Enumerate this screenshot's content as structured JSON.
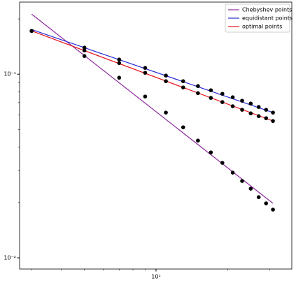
{
  "chart_data": {
    "type": "line",
    "log_x": true,
    "log_y": true,
    "x": [
      3,
      5,
      7,
      9,
      11,
      13,
      15,
      17,
      19,
      21,
      23,
      25,
      27,
      29,
      31
    ],
    "series": [
      {
        "name": "Chebyshev points",
        "color": "#8e2c9e",
        "x": [
          3,
          31
        ],
        "values": [
          0.2123,
          0.0198
        ],
        "points": [
          0.172,
          0.1256,
          0.0957,
          0.0756,
          0.0618,
          0.0514,
          0.0435,
          0.0375,
          0.0329,
          0.0291,
          0.0262,
          0.0238,
          0.0214,
          0.0198,
          0.0183
        ]
      },
      {
        "name": "equidistant points",
        "color": "#2a2ad6",
        "x": [
          3,
          31
        ],
        "values": [
          0.1751,
          0.0618
        ],
        "points": [
          0.172,
          0.1395,
          0.1202,
          0.1082,
          0.0983,
          0.0916,
          0.0862,
          0.0818,
          0.0782,
          0.0749,
          0.0717,
          0.0692,
          0.0663,
          0.064,
          0.0618
        ]
      },
      {
        "name": "optimal points",
        "color": "#e8141c",
        "x": [
          3,
          31
        ],
        "values": [
          0.1721,
          0.0556
        ],
        "points": [
          0.172,
          0.1347,
          0.115,
          0.1018,
          0.0916,
          0.0847,
          0.0789,
          0.0743,
          0.0705,
          0.0669,
          0.064,
          0.0612,
          0.0591,
          0.0576,
          0.0556
        ]
      }
    ],
    "point_color": "#000000",
    "xlim": [
      2.67,
      37.2
    ],
    "ylim": [
      0.00869,
      0.247
    ],
    "xticks": [
      {
        "value": 10,
        "label": "10¹"
      }
    ],
    "yticks": [
      {
        "value": 0.01,
        "label": "10⁻²"
      },
      {
        "value": 0.1,
        "label": "10⁻¹"
      }
    ],
    "xminor": [
      3,
      4,
      5,
      6,
      7,
      8,
      9,
      20,
      30
    ],
    "yminor": [
      0.02,
      0.03,
      0.04,
      0.05,
      0.06,
      0.07,
      0.08,
      0.09,
      0.2
    ],
    "legend": "upper right"
  }
}
